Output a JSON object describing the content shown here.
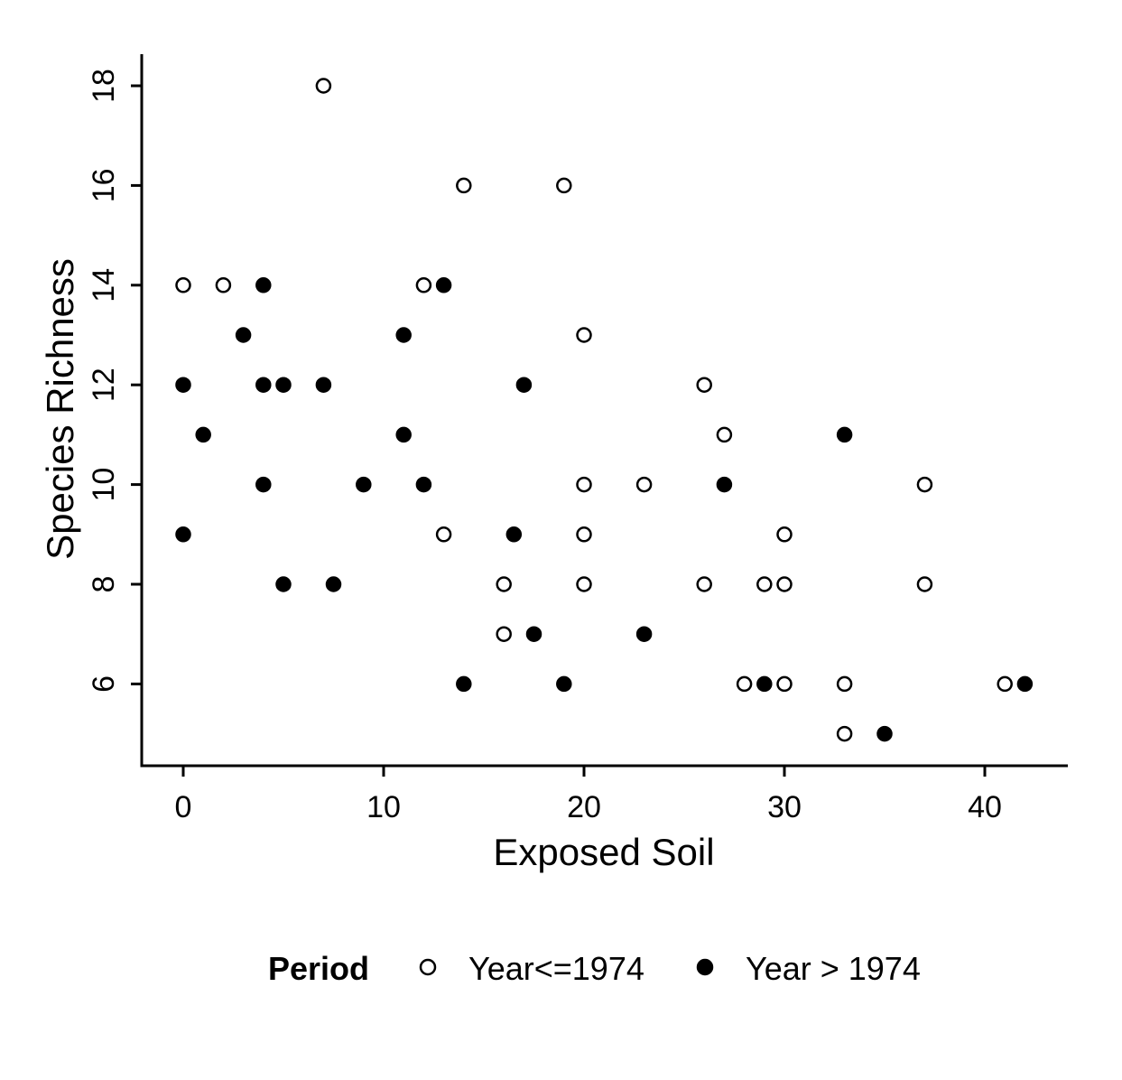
{
  "chart_data": {
    "type": "scatter",
    "title": "",
    "xlabel": "Exposed Soil",
    "ylabel": "Species Richness",
    "xlim": [
      -2,
      44
    ],
    "ylim": [
      4.4,
      18.6
    ],
    "x_ticks": [
      0,
      10,
      20,
      30,
      40
    ],
    "y_ticks": [
      6,
      8,
      10,
      12,
      14,
      16,
      18
    ],
    "grid": false,
    "legend": {
      "title": "Period",
      "position": "bottom"
    },
    "series": [
      {
        "name": "Year<=1974",
        "marker": "open-circle",
        "color": "#000000",
        "points": [
          [
            7,
            18
          ],
          [
            14,
            16
          ],
          [
            19,
            16
          ],
          [
            0,
            14
          ],
          [
            2,
            14
          ],
          [
            12,
            14
          ],
          [
            20,
            13
          ],
          [
            26,
            12
          ],
          [
            27,
            11
          ],
          [
            20,
            10
          ],
          [
            23,
            10
          ],
          [
            37,
            10
          ],
          [
            13,
            9
          ],
          [
            20,
            9
          ],
          [
            30,
            9
          ],
          [
            16,
            8
          ],
          [
            20,
            8
          ],
          [
            26,
            8
          ],
          [
            29,
            8
          ],
          [
            30,
            8
          ],
          [
            37,
            8
          ],
          [
            16,
            7
          ],
          [
            28,
            6
          ],
          [
            30,
            6
          ],
          [
            33,
            6
          ],
          [
            41,
            6
          ],
          [
            33,
            5
          ]
        ]
      },
      {
        "name": "Year > 1974",
        "marker": "filled-circle",
        "color": "#000000",
        "points": [
          [
            4,
            14
          ],
          [
            13,
            14
          ],
          [
            3,
            13
          ],
          [
            11,
            13
          ],
          [
            0,
            12
          ],
          [
            4,
            12
          ],
          [
            5,
            12
          ],
          [
            7,
            12
          ],
          [
            17,
            12
          ],
          [
            1,
            11
          ],
          [
            11,
            11
          ],
          [
            33,
            11
          ],
          [
            4,
            10
          ],
          [
            9,
            10
          ],
          [
            12,
            10
          ],
          [
            27,
            10
          ],
          [
            0,
            9
          ],
          [
            16.5,
            9
          ],
          [
            5,
            8
          ],
          [
            7.5,
            8
          ],
          [
            17.5,
            7
          ],
          [
            23,
            7
          ],
          [
            14,
            6
          ],
          [
            19,
            6
          ],
          [
            29,
            6
          ],
          [
            42,
            6
          ],
          [
            35,
            5
          ]
        ]
      }
    ]
  }
}
